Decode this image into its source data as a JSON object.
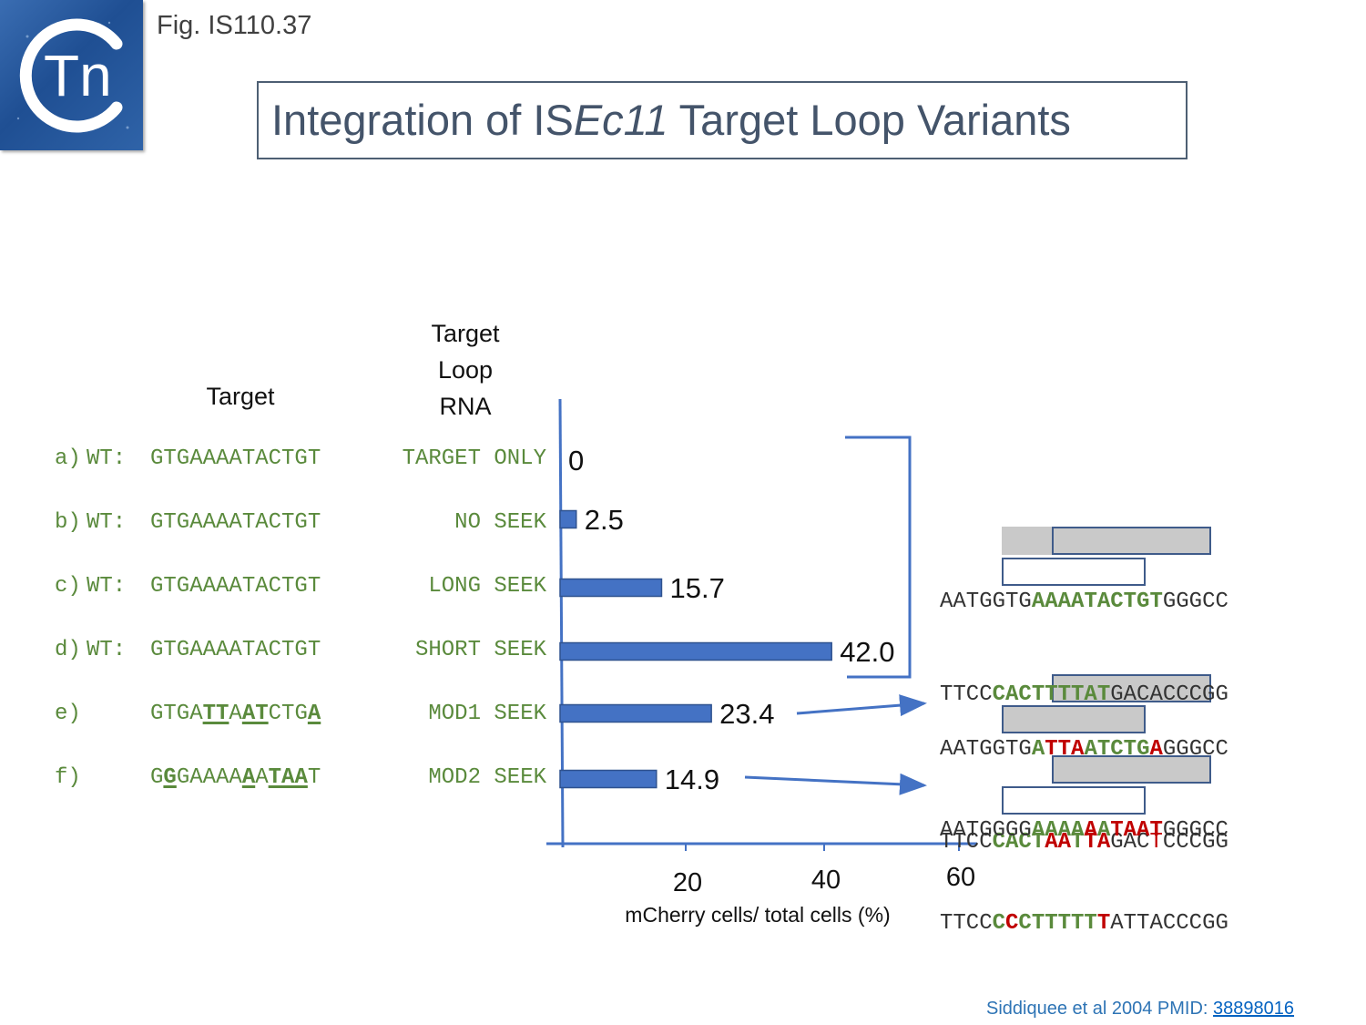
{
  "fig_label": "Fig. IS110.37",
  "logo": {
    "letter_c": "C",
    "letters_tn": "Tn"
  },
  "title": {
    "pre": "Integration of IS",
    "italic": "Ec11",
    "post": " Target Loop Variants"
  },
  "headers": {
    "target": "Target",
    "rna_line1": "Target",
    "rna_line2": "Loop",
    "rna_line3": "RNA"
  },
  "rows": [
    {
      "label": "a)",
      "wt": "WT:",
      "seek": "TARGET ONLY",
      "value_label": "0"
    },
    {
      "label": "b)",
      "wt": "WT:",
      "seek": "NO SEEK",
      "value_label": "2.5"
    },
    {
      "label": "c)",
      "wt": "WT:",
      "seek": "LONG SEEK",
      "value_label": "15.7"
    },
    {
      "label": "d)",
      "wt": "WT:",
      "seek": "SHORT SEEK",
      "value_label": "42.0"
    },
    {
      "label": "e)",
      "wt": "",
      "seek": "MOD1 SEEK",
      "value_label": "23.4"
    },
    {
      "label": "f)",
      "wt": "",
      "seek": "MOD2 SEEK",
      "value_label": "14.9"
    }
  ],
  "wt_target_seq": "GTGAAAATACTGT",
  "seq_e_parts": [
    "GTGA",
    "TT",
    "A",
    "AT",
    "CTG",
    "A"
  ],
  "seq_f_parts": [
    "G",
    "G",
    "GAAAA",
    "A",
    "A",
    "TAA",
    "T"
  ],
  "chart_data": {
    "type": "bar",
    "orientation": "horizontal",
    "categories": [
      "TARGET ONLY",
      "NO SEEK",
      "LONG SEEK",
      "SHORT SEEK",
      "MOD1 SEEK",
      "MOD2 SEEK"
    ],
    "values": [
      0,
      2.5,
      15.7,
      42.0,
      23.4,
      14.9
    ],
    "xlabel": "mCherry cells/ total cells (%)",
    "ticks": [
      "20",
      "40",
      "60"
    ],
    "xlim": [
      0,
      60
    ],
    "bar_color": "#4472c4"
  },
  "sequences": {
    "group1": {
      "top": [
        "AATGGTG",
        "AAAATACTGT",
        "GGGCC"
      ],
      "bottom": [
        "TTCC",
        "CACTTTTAT",
        "GACACCCGG"
      ]
    },
    "group2": {
      "top": [
        "AATGGTG",
        "A",
        "TTA",
        "AT",
        "CTG",
        "A",
        "GGGCC"
      ],
      "bottom": [
        "TTCC",
        "CACT",
        "AA",
        "T",
        "TA",
        "GAC",
        "T",
        "CCCGG"
      ]
    },
    "group3": {
      "top": [
        "AATGGGG",
        "AAAA",
        "A",
        "A",
        "TAAT",
        "GGGCC"
      ],
      "bottom": [
        "TTCC",
        "C",
        "C",
        "CTTTTT",
        "T",
        "ATTACCCGG"
      ]
    }
  },
  "citation": {
    "text": "Siddiquee et al 2004 PMID: ",
    "link": "38898016"
  },
  "colors": {
    "title": "#44546a",
    "green": "#5a8a3c",
    "red": "#c00000",
    "bar": "#4472c4",
    "axis": "#4472c4"
  }
}
